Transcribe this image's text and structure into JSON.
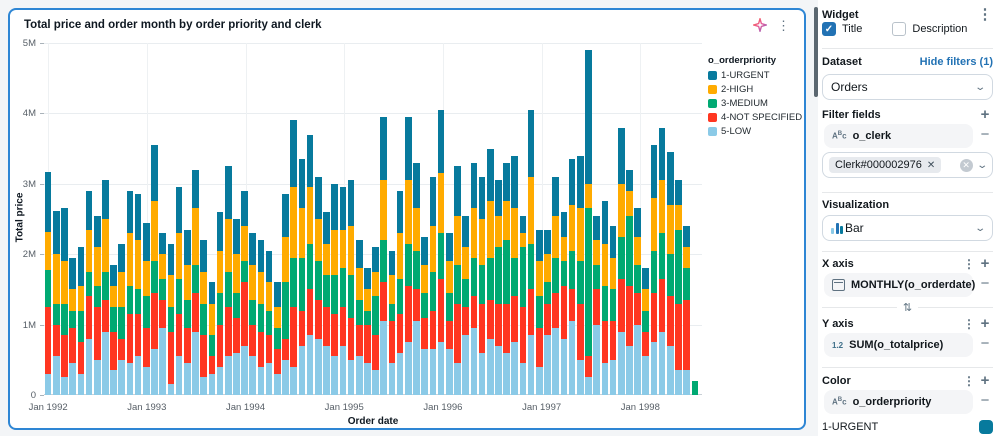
{
  "colors": {
    "accent_blue": "#2272b4",
    "card_border": "#2e86d4",
    "urgent_teal": "#077A9D",
    "high_amber": "#FFAB00",
    "medium_green": "#00A972",
    "notspec_red": "#FF3621",
    "low_lightblue": "#8BCAE7"
  },
  "chart_data": {
    "type": "bar",
    "stacked": true,
    "title": "Total price and order month by order priority and clerk",
    "xlabel": "Order date",
    "ylabel": "Total price",
    "legend_title": "o_orderpriority",
    "legend_position": "top-right",
    "grid": true,
    "units": "millions",
    "ylim": [
      0,
      5
    ],
    "y_tick_labels": [
      "0",
      "1M",
      "2M",
      "3M",
      "4M",
      "5M"
    ],
    "x_tick_labels": [
      "Jan 1992",
      "Jan 1993",
      "Jan 1994",
      "Jan 1995",
      "Jan 1996",
      "Jan 1997",
      "Jan 1998"
    ],
    "x_range": "Jan 1992 to Aug 1998 (80 monthly bars)",
    "stack_bottom_to_top": [
      "5-LOW",
      "4-NOT SPECIFIED",
      "3-MEDIUM",
      "2-HIGH",
      "1-URGENT"
    ],
    "series": [
      {
        "name": "1-URGENT",
        "color": "#077A9D",
        "values": [
          0.85,
          0.62,
          0.75,
          0.45,
          0.55,
          0.55,
          0.45,
          0.55,
          0.3,
          0.4,
          0.6,
          0.65,
          0.55,
          0.8,
          0.3,
          0.45,
          0.65,
          0.5,
          0.55,
          0.45,
          0.3,
          0.55,
          0.75,
          0.5,
          0.5,
          0.45,
          0.45,
          0.45,
          0.35,
          0.6,
          0.95,
          0.7,
          0.75,
          0.6,
          0.45,
          0.65,
          0.6,
          0.65,
          0.4,
          0.3,
          0.35,
          0.9,
          0.35,
          0.6,
          0.9,
          0.65,
          0.4,
          0.7,
          0.9,
          0.4,
          0.7,
          0.45,
          0.65,
          0.6,
          0.75,
          0.5,
          0.55,
          0.75,
          0.25,
          0.95,
          0.45,
          0.35,
          0.55,
          0.35,
          0.65,
          0.75,
          1.9,
          0.35,
          0.6,
          0.45,
          0.8,
          0.3,
          0.4,
          0.3,
          0.75,
          0.75,
          0.75,
          0.35,
          0.3,
          0.0
        ]
      },
      {
        "name": "2-HIGH",
        "color": "#FFAB00",
        "values": [
          0.55,
          0.7,
          0.6,
          0.3,
          0.35,
          0.6,
          0.55,
          0.75,
          0.3,
          0.5,
          0.75,
          0.7,
          0.5,
          0.85,
          0.35,
          0.45,
          0.65,
          0.5,
          0.8,
          0.45,
          0.45,
          0.6,
          0.75,
          0.55,
          0.5,
          0.5,
          0.45,
          0.4,
          0.3,
          0.65,
          1.0,
          0.7,
          0.8,
          0.6,
          0.45,
          0.65,
          0.55,
          0.7,
          0.45,
          0.3,
          0.35,
          0.85,
          0.4,
          0.65,
          0.9,
          0.6,
          0.4,
          0.65,
          0.85,
          0.45,
          0.7,
          0.45,
          0.7,
          0.65,
          0.8,
          0.45,
          0.55,
          0.7,
          0.2,
          0.95,
          0.5,
          0.4,
          0.6,
          0.35,
          0.65,
          0.75,
          0.35,
          0.35,
          0.6,
          0.45,
          0.75,
          0.35,
          0.4,
          0.3,
          0.75,
          0.75,
          0.7,
          0.35,
          0.3,
          0.0
        ]
      },
      {
        "name": "3-MEDIUM",
        "color": "#00A972",
        "values": [
          0.52,
          0.3,
          0.45,
          0.25,
          0.45,
          0.35,
          0.3,
          0.4,
          0.35,
          0.45,
          0.4,
          0.35,
          0.45,
          0.45,
          0.3,
          0.35,
          0.5,
          0.4,
          0.4,
          0.45,
          0.3,
          0.45,
          0.5,
          0.35,
          0.3,
          0.35,
          0.4,
          0.35,
          0.3,
          0.8,
          0.7,
          0.75,
          0.65,
          0.55,
          0.45,
          0.55,
          0.55,
          0.6,
          0.35,
          0.2,
          0.55,
          0.6,
          0.25,
          0.5,
          0.6,
          0.55,
          0.35,
          0.55,
          0.65,
          0.4,
          0.55,
          0.4,
          0.55,
          0.55,
          0.6,
          0.8,
          0.9,
          0.55,
          0.85,
          0.65,
          0.45,
          0.3,
          0.5,
          0.35,
          0.55,
          0.6,
          2.1,
          0.35,
          0.5,
          0.45,
          0.6,
          1.0,
          0.4,
          0.3,
          0.6,
          0.65,
          0.6,
          1.05,
          0.45,
          0.2
        ]
      },
      {
        "name": "4-NOT SPECIFIED",
        "color": "#FF3621",
        "values": [
          0.95,
          0.45,
          0.6,
          0.5,
          0.45,
          0.6,
          0.75,
          0.45,
          0.55,
          0.3,
          0.7,
          0.6,
          0.55,
          0.8,
          0.4,
          0.75,
          0.6,
          0.5,
          0.55,
          0.6,
          0.25,
          0.6,
          0.7,
          0.5,
          0.9,
          0.45,
          0.5,
          0.4,
          0.35,
          0.3,
          0.85,
          0.5,
          0.65,
          0.55,
          0.55,
          0.6,
          0.55,
          0.6,
          0.45,
          0.55,
          0.5,
          0.55,
          0.6,
          0.55,
          0.8,
          0.45,
          0.45,
          0.55,
          0.9,
          0.4,
          0.85,
          0.4,
          0.45,
          0.7,
          0.55,
          0.6,
          0.7,
          0.65,
          0.8,
          0.65,
          0.55,
          0.45,
          0.5,
          0.75,
          0.45,
          0.8,
          0.3,
          0.5,
          0.6,
          0.55,
          0.75,
          0.85,
          0.45,
          0.35,
          0.7,
          0.75,
          0.7,
          0.95,
          1.0,
          0.0
        ]
      },
      {
        "name": "5-LOW",
        "color": "#8BCAE7",
        "values": [
          0.3,
          0.55,
          0.25,
          0.45,
          0.3,
          0.8,
          0.5,
          0.9,
          0.35,
          0.5,
          0.45,
          0.55,
          0.4,
          0.65,
          0.95,
          0.15,
          0.55,
          0.45,
          0.9,
          0.25,
          0.3,
          0.4,
          0.55,
          0.6,
          0.7,
          0.55,
          0.4,
          0.45,
          0.3,
          0.5,
          0.4,
          0.7,
          0.85,
          0.8,
          0.7,
          0.55,
          0.7,
          0.5,
          0.55,
          0.45,
          0.35,
          1.05,
          0.45,
          0.6,
          0.75,
          1.05,
          0.65,
          0.65,
          0.75,
          0.65,
          0.45,
          0.85,
          0.95,
          0.6,
          0.8,
          0.7,
          0.6,
          0.75,
          0.45,
          0.85,
          0.4,
          0.85,
          0.95,
          0.8,
          1.05,
          0.5,
          0.25,
          1.0,
          0.45,
          0.5,
          0.9,
          0.7,
          1.0,
          0.55,
          0.75,
          0.9,
          0.7,
          0.35,
          0.35,
          0.0
        ]
      }
    ]
  },
  "panel": {
    "header": {
      "title": "Widget"
    },
    "checkboxes": {
      "title_label": "Title",
      "title_checked": true,
      "title_check_glyph": "✓",
      "description_label": "Description",
      "description_checked": false
    },
    "dataset": {
      "label": "Dataset",
      "link": "Hide filters (1)",
      "selected": "Orders"
    },
    "filter_fields": {
      "label": "Filter fields",
      "field": "o_clerk",
      "field_type_icon": "string-type (Abc)",
      "value_chip": "Clerk#000002976",
      "chip_remove_glyph": "✕",
      "clear_glyph": "✕"
    },
    "visualization": {
      "label": "Visualization",
      "selected": "Bar"
    },
    "x_axis": {
      "label": "X axis",
      "field": "MONTHLY(o_orderdate)",
      "field_type_icon": "calendar"
    },
    "y_axis": {
      "label": "Y axis",
      "field": "SUM(o_totalprice)",
      "type_badge": "1.2"
    },
    "swap_icon": "⇅",
    "color_section": {
      "label": "Color",
      "field": "o_orderpriority",
      "first_item_label": "1-URGENT",
      "first_item_color": "#077A9D"
    },
    "glyphs": {
      "kebab": "⋮",
      "plus": "+",
      "minus": "−",
      "chevron": "⌄",
      "string_type_a": "A",
      "string_type_b": "B",
      "string_type_c": "c"
    }
  }
}
